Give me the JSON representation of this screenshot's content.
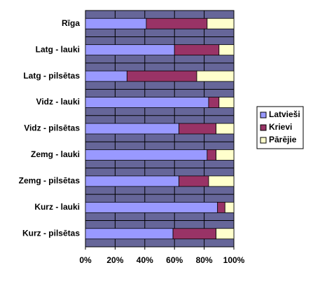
{
  "chart_data": {
    "type": "stacked_bar_horizontal",
    "categories": [
      "Rīga",
      "Latg - lauki",
      "Latg - pilsētas",
      "Vidz - lauki",
      "Vidz - pilsētas",
      "Zemg - lauki",
      "Zemg - pilsētas",
      "Kurz - lauki",
      "Kurz - pilsētas"
    ],
    "series": [
      {
        "name": "Latvieši",
        "color": "#9999ff",
        "values": [
          41,
          60,
          28,
          83,
          63,
          82,
          63,
          89,
          59
        ]
      },
      {
        "name": "Krievi",
        "color": "#993366",
        "values": [
          41,
          30,
          47,
          7,
          25,
          6,
          20,
          5,
          29
        ]
      },
      {
        "name": "Pārējie",
        "color": "#ffffcc",
        "values": [
          18,
          10,
          25,
          10,
          12,
          12,
          17,
          6,
          12
        ]
      }
    ],
    "xlim": [
      0,
      100
    ],
    "xticks": [
      {
        "value": 0,
        "label": "0%"
      },
      {
        "value": 20,
        "label": "20%"
      },
      {
        "value": 40,
        "label": "40%"
      },
      {
        "value": 60,
        "label": "60%"
      },
      {
        "value": 80,
        "label": "80%"
      },
      {
        "value": 100,
        "label": "100%"
      }
    ],
    "grid": true,
    "legend": "right",
    "plot_color": "#666699"
  }
}
